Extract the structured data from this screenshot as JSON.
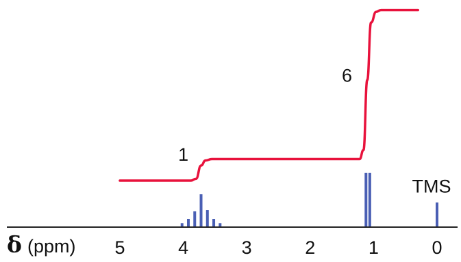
{
  "chart_data": {
    "type": "line",
    "title": "",
    "xlabel_symbol": "δ",
    "xlabel_unit": "(ppm)",
    "xlim": [
      5,
      0
    ],
    "x_ticks": [
      "5",
      "4",
      "3",
      "2",
      "1",
      "0"
    ],
    "x_tick_values": [
      5,
      4,
      3,
      2,
      1,
      0
    ],
    "colors": {
      "spectrum": "#4a5fb4",
      "integral": "#e8123c",
      "axis": "#222222"
    },
    "spectrum_peaks": [
      {
        "x": 4.02,
        "y": 0.12
      },
      {
        "x": 3.92,
        "y": 0.25
      },
      {
        "x": 3.82,
        "y": 0.48
      },
      {
        "x": 3.72,
        "y": 1.0
      },
      {
        "x": 3.62,
        "y": 0.52
      },
      {
        "x": 3.52,
        "y": 0.25
      },
      {
        "x": 3.42,
        "y": 0.12
      },
      {
        "x": 1.12,
        "y": 1.65
      },
      {
        "x": 1.06,
        "y": 1.65
      },
      {
        "x": 0.0,
        "y": 0.75
      }
    ],
    "integral_curve": {
      "x": [
        5.0,
        3.88,
        3.8,
        3.72,
        3.65,
        3.55,
        1.22,
        1.16,
        1.1,
        1.04,
        0.96,
        0.88,
        0.3
      ],
      "y": [
        0.0,
        0.0,
        0.05,
        0.42,
        0.56,
        0.6,
        0.6,
        0.85,
        2.8,
        4.4,
        4.7,
        4.75,
        4.75
      ]
    },
    "integration_labels": [
      {
        "text": "1",
        "x": 4.0,
        "y": 0.55
      },
      {
        "text": "6",
        "x": 1.42,
        "y": 2.75
      }
    ],
    "reference_label": {
      "text": "TMS",
      "x": 0.0,
      "y": 1.05
    }
  }
}
